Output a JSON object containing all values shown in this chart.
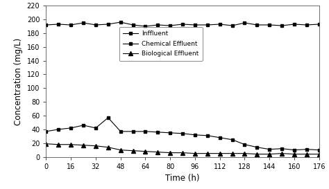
{
  "title": "",
  "xlabel": "Time (h)",
  "ylabel": "Concentration (mg/L)",
  "xlim": [
    0,
    176
  ],
  "ylim": [
    0,
    220
  ],
  "xticks": [
    0,
    16,
    32,
    48,
    64,
    80,
    96,
    112,
    128,
    144,
    160,
    176
  ],
  "yticks": [
    0,
    20,
    40,
    60,
    80,
    100,
    120,
    140,
    160,
    180,
    200,
    220
  ],
  "influent_x": [
    0,
    8,
    16,
    24,
    32,
    40,
    48,
    56,
    64,
    72,
    80,
    88,
    96,
    104,
    112,
    120,
    128,
    136,
    144,
    152,
    160,
    168,
    176
  ],
  "influent_y": [
    192,
    193,
    192,
    195,
    192,
    193,
    196,
    192,
    190,
    192,
    191,
    193,
    192,
    192,
    193,
    191,
    195,
    192,
    192,
    191,
    193,
    192,
    193
  ],
  "chem_x": [
    0,
    8,
    16,
    24,
    32,
    40,
    48,
    56,
    64,
    72,
    80,
    88,
    96,
    104,
    112,
    120,
    128,
    136,
    144,
    152,
    160,
    168,
    176
  ],
  "chem_y": [
    37,
    40,
    42,
    46,
    42,
    57,
    37,
    37,
    37,
    36,
    35,
    34,
    32,
    31,
    28,
    25,
    18,
    14,
    11,
    12,
    10,
    11,
    10
  ],
  "bio_x": [
    0,
    8,
    16,
    24,
    32,
    40,
    48,
    56,
    64,
    72,
    80,
    88,
    96,
    104,
    112,
    120,
    128,
    136,
    144,
    152,
    160,
    168,
    176
  ],
  "bio_y": [
    19,
    18,
    18,
    17,
    16,
    14,
    10,
    9,
    8,
    7,
    6,
    6,
    5,
    5,
    5,
    5,
    5,
    4,
    4,
    5,
    4,
    4,
    4
  ],
  "line_color": "#000000",
  "bg_color": "#ffffff",
  "legend_labels": [
    "Inffluent",
    "Chemical Effluent",
    "Biological Effluent"
  ],
  "fontsize": 8.5
}
